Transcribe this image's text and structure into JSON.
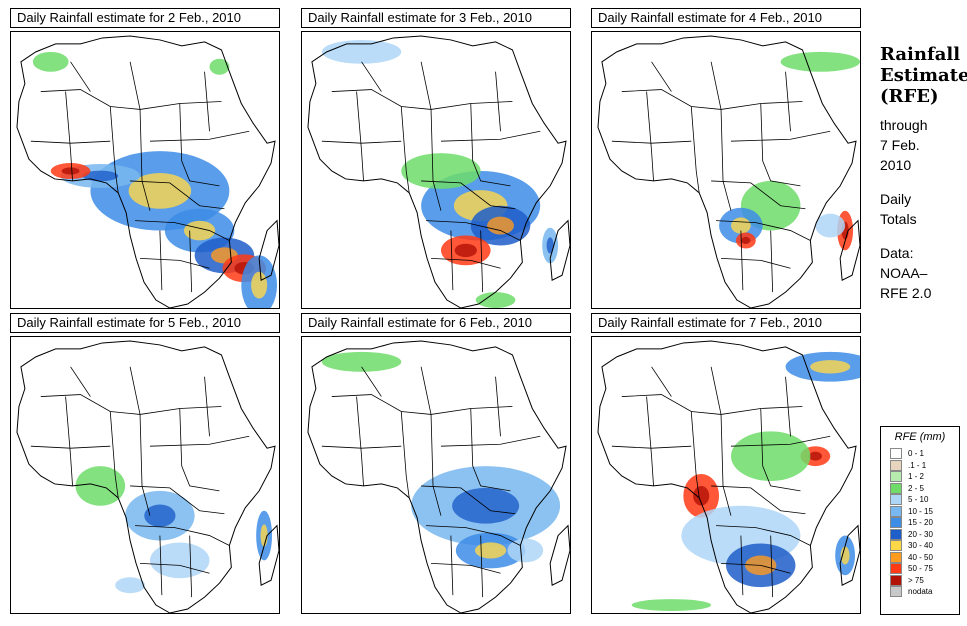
{
  "panels": [
    {
      "title": "Daily Rainfall estimate for  2 Feb., 2010"
    },
    {
      "title": "Daily Rainfall estimate for  3 Feb., 2010"
    },
    {
      "title": "Daily Rainfall estimate for  4 Feb., 2010"
    },
    {
      "title": "Daily Rainfall estimate for  5 Feb., 2010"
    },
    {
      "title": "Daily Rainfall estimate for  6 Feb., 2010"
    },
    {
      "title": "Daily Rainfall estimate for  7 Feb., 2010"
    }
  ],
  "sidebar": {
    "title_lines": [
      "Rainfall",
      "Estimate",
      "(RFE)"
    ],
    "through_lines": [
      "through",
      "7 Feb.",
      "2010"
    ],
    "totals_lines": [
      "Daily",
      "Totals"
    ],
    "data_lines": [
      "Data:",
      "NOAA–",
      "RFE 2.0"
    ]
  },
  "legend": {
    "title": "RFE (mm)",
    "items": [
      {
        "label": "0 - 1",
        "color": "#ffffff"
      },
      {
        "label": ".1 - 1",
        "color": "#e8d5bd"
      },
      {
        "label": "1 - 2",
        "color": "#b6ecb0"
      },
      {
        "label": "2 - 5",
        "color": "#6fdc6a"
      },
      {
        "label": "5 - 10",
        "color": "#aed6f7"
      },
      {
        "label": "10 - 15",
        "color": "#78b7ef"
      },
      {
        "label": "15 - 20",
        "color": "#3d8ce6"
      },
      {
        "label": "20 - 30",
        "color": "#1e5ec9"
      },
      {
        "label": "30 - 40",
        "color": "#ffd84a"
      },
      {
        "label": "40 - 50",
        "color": "#ff9b1f"
      },
      {
        "label": "50 - 75",
        "color": "#ff3a14"
      },
      {
        "label": "> 75",
        "color": "#b31206"
      },
      {
        "label": "nodata",
        "color": "#c8c8c8"
      }
    ]
  }
}
